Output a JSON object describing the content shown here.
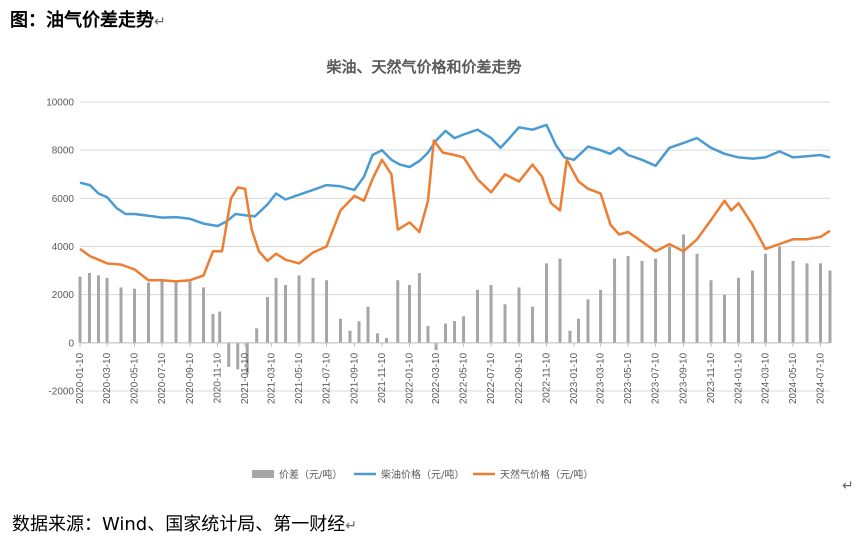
{
  "header": {
    "title": "图：油气价差走势",
    "mark": "↵"
  },
  "footer": {
    "source": "数据来源：Wind、国家统计局、第一财经",
    "mark": "↵",
    "stray": "↵"
  },
  "colors": {
    "diff": "#a6a6a6",
    "diesel": "#4a9bd1",
    "gas": "#ed7d31",
    "grid": "#d9d9d9"
  },
  "chart_data": {
    "type": "line",
    "title": "柴油、天然气价格和价差走势",
    "ylim": [
      -2000,
      10000
    ],
    "yticks": [
      -2000,
      0,
      2000,
      4000,
      6000,
      8000,
      10000
    ],
    "x_start": "2020-01-10",
    "x_end": "2024-07-31",
    "xticks": [
      "2020-01-10",
      "2020-03-10",
      "2020-05-10",
      "2020-07-10",
      "2020-09-10",
      "2020-11-10",
      "2021-01-10",
      "2021-03-10",
      "2021-05-10",
      "2021-07-10",
      "2021-09-10",
      "2021-11-10",
      "2022-01-10",
      "2022-03-10",
      "2022-05-10",
      "2022-07-10",
      "2022-09-10",
      "2022-11-10",
      "2023-01-10",
      "2023-03-10",
      "2023-05-10",
      "2023-07-10",
      "2023-09-10",
      "2023-11-10",
      "2024-01-10",
      "2024-03-10",
      "2024-05-10",
      "2024-07-10"
    ],
    "legend_position": "bottom",
    "series": [
      {
        "name": "价差（元/吨）",
        "kind": "bar",
        "points": [
          [
            "2020-01-10",
            2750
          ],
          [
            "2020-01-31",
            2900
          ],
          [
            "2020-02-20",
            2800
          ],
          [
            "2020-03-10",
            2700
          ],
          [
            "2020-04-10",
            2300
          ],
          [
            "2020-05-10",
            2250
          ],
          [
            "2020-06-10",
            2500
          ],
          [
            "2020-07-10",
            2600
          ],
          [
            "2020-08-10",
            2600
          ],
          [
            "2020-09-10",
            2550
          ],
          [
            "2020-10-10",
            2300
          ],
          [
            "2020-10-31",
            1200
          ],
          [
            "2020-11-15",
            1300
          ],
          [
            "2020-12-05",
            -1000
          ],
          [
            "2020-12-25",
            -1100
          ],
          [
            "2021-01-15",
            -1300
          ],
          [
            "2021-02-05",
            600
          ],
          [
            "2021-03-01",
            1900
          ],
          [
            "2021-03-20",
            2700
          ],
          [
            "2021-04-10",
            2400
          ],
          [
            "2021-05-10",
            2800
          ],
          [
            "2021-06-10",
            2700
          ],
          [
            "2021-07-10",
            2600
          ],
          [
            "2021-08-10",
            1000
          ],
          [
            "2021-08-31",
            500
          ],
          [
            "2021-09-20",
            900
          ],
          [
            "2021-10-10",
            1500
          ],
          [
            "2021-10-31",
            400
          ],
          [
            "2021-11-20",
            200
          ],
          [
            "2021-12-15",
            2600
          ],
          [
            "2022-01-10",
            2400
          ],
          [
            "2022-02-01",
            2900
          ],
          [
            "2022-02-20",
            700
          ],
          [
            "2022-03-10",
            -300
          ],
          [
            "2022-03-31",
            800
          ],
          [
            "2022-04-20",
            900
          ],
          [
            "2022-05-10",
            1100
          ],
          [
            "2022-06-10",
            2200
          ],
          [
            "2022-07-10",
            2400
          ],
          [
            "2022-08-10",
            1600
          ],
          [
            "2022-09-10",
            2300
          ],
          [
            "2022-10-10",
            1500
          ],
          [
            "2022-11-10",
            3300
          ],
          [
            "2022-12-10",
            3500
          ],
          [
            "2023-01-01",
            500
          ],
          [
            "2023-01-20",
            1000
          ],
          [
            "2023-02-10",
            1800
          ],
          [
            "2023-03-10",
            2200
          ],
          [
            "2023-04-10",
            3500
          ],
          [
            "2023-05-10",
            3600
          ],
          [
            "2023-06-10",
            3400
          ],
          [
            "2023-07-10",
            3500
          ],
          [
            "2023-08-10",
            4000
          ],
          [
            "2023-09-10",
            4500
          ],
          [
            "2023-10-10",
            3700
          ],
          [
            "2023-11-10",
            2600
          ],
          [
            "2023-12-10",
            2000
          ],
          [
            "2024-01-10",
            2700
          ],
          [
            "2024-02-10",
            3000
          ],
          [
            "2024-03-10",
            3700
          ],
          [
            "2024-04-10",
            4000
          ],
          [
            "2024-05-10",
            3400
          ],
          [
            "2024-06-10",
            3300
          ],
          [
            "2024-07-10",
            3300
          ],
          [
            "2024-07-31",
            3000
          ]
        ]
      },
      {
        "name": "柴油价格（元/吨）",
        "kind": "line",
        "points": [
          [
            "2020-01-10",
            6650
          ],
          [
            "2020-02-01",
            6550
          ],
          [
            "2020-02-20",
            6200
          ],
          [
            "2020-03-10",
            6050
          ],
          [
            "2020-03-31",
            5600
          ],
          [
            "2020-04-20",
            5350
          ],
          [
            "2020-05-10",
            5350
          ],
          [
            "2020-06-10",
            5280
          ],
          [
            "2020-07-10",
            5200
          ],
          [
            "2020-08-10",
            5220
          ],
          [
            "2020-09-10",
            5150
          ],
          [
            "2020-10-10",
            4950
          ],
          [
            "2020-11-10",
            4850
          ],
          [
            "2020-12-01",
            5050
          ],
          [
            "2020-12-20",
            5350
          ],
          [
            "2021-01-10",
            5300
          ],
          [
            "2021-02-01",
            5250
          ],
          [
            "2021-03-01",
            5750
          ],
          [
            "2021-03-20",
            6200
          ],
          [
            "2021-04-10",
            5950
          ],
          [
            "2021-05-10",
            6150
          ],
          [
            "2021-06-10",
            6350
          ],
          [
            "2021-07-10",
            6550
          ],
          [
            "2021-08-10",
            6500
          ],
          [
            "2021-09-10",
            6350
          ],
          [
            "2021-10-01",
            6900
          ],
          [
            "2021-10-20",
            7800
          ],
          [
            "2021-11-10",
            8000
          ],
          [
            "2021-12-01",
            7600
          ],
          [
            "2021-12-20",
            7400
          ],
          [
            "2022-01-10",
            7300
          ],
          [
            "2022-02-01",
            7550
          ],
          [
            "2022-02-20",
            7900
          ],
          [
            "2022-03-10",
            8400
          ],
          [
            "2022-03-31",
            8800
          ],
          [
            "2022-04-20",
            8500
          ],
          [
            "2022-05-10",
            8650
          ],
          [
            "2022-06-10",
            8850
          ],
          [
            "2022-07-10",
            8500
          ],
          [
            "2022-07-31",
            8100
          ],
          [
            "2022-08-20",
            8500
          ],
          [
            "2022-09-10",
            8950
          ],
          [
            "2022-10-10",
            8850
          ],
          [
            "2022-11-10",
            9050
          ],
          [
            "2022-12-01",
            8200
          ],
          [
            "2022-12-20",
            7700
          ],
          [
            "2023-01-10",
            7600
          ],
          [
            "2023-02-10",
            8150
          ],
          [
            "2023-03-10",
            8000
          ],
          [
            "2023-03-31",
            7850
          ],
          [
            "2023-04-20",
            8100
          ],
          [
            "2023-05-10",
            7800
          ],
          [
            "2023-06-10",
            7600
          ],
          [
            "2023-07-10",
            7350
          ],
          [
            "2023-08-10",
            8100
          ],
          [
            "2023-09-10",
            8300
          ],
          [
            "2023-10-10",
            8500
          ],
          [
            "2023-11-10",
            8100
          ],
          [
            "2023-12-10",
            7850
          ],
          [
            "2024-01-10",
            7700
          ],
          [
            "2024-02-10",
            7650
          ],
          [
            "2024-03-10",
            7700
          ],
          [
            "2024-04-10",
            7950
          ],
          [
            "2024-05-10",
            7700
          ],
          [
            "2024-06-10",
            7750
          ],
          [
            "2024-07-10",
            7800
          ],
          [
            "2024-07-31",
            7700
          ]
        ]
      },
      {
        "name": "天然气价格（元/吨）",
        "kind": "line",
        "points": [
          [
            "2020-01-10",
            3900
          ],
          [
            "2020-02-01",
            3600
          ],
          [
            "2020-02-20",
            3450
          ],
          [
            "2020-03-10",
            3300
          ],
          [
            "2020-04-10",
            3250
          ],
          [
            "2020-05-10",
            3050
          ],
          [
            "2020-06-10",
            2600
          ],
          [
            "2020-07-10",
            2600
          ],
          [
            "2020-08-10",
            2550
          ],
          [
            "2020-09-10",
            2600
          ],
          [
            "2020-10-10",
            2800
          ],
          [
            "2020-10-31",
            3800
          ],
          [
            "2020-11-20",
            3800
          ],
          [
            "2020-12-10",
            6000
          ],
          [
            "2020-12-25",
            6450
          ],
          [
            "2021-01-10",
            6400
          ],
          [
            "2021-01-25",
            4700
          ],
          [
            "2021-02-10",
            3800
          ],
          [
            "2021-03-01",
            3400
          ],
          [
            "2021-03-20",
            3700
          ],
          [
            "2021-04-10",
            3450
          ],
          [
            "2021-05-10",
            3300
          ],
          [
            "2021-06-10",
            3750
          ],
          [
            "2021-07-10",
            4000
          ],
          [
            "2021-08-10",
            5500
          ],
          [
            "2021-09-10",
            6100
          ],
          [
            "2021-10-01",
            5900
          ],
          [
            "2021-10-20",
            6800
          ],
          [
            "2021-11-10",
            7600
          ],
          [
            "2021-12-01",
            7000
          ],
          [
            "2021-12-15",
            4700
          ],
          [
            "2022-01-10",
            5000
          ],
          [
            "2022-02-01",
            4600
          ],
          [
            "2022-02-20",
            5900
          ],
          [
            "2022-03-05",
            8400
          ],
          [
            "2022-03-25",
            7900
          ],
          [
            "2022-04-20",
            7800
          ],
          [
            "2022-05-10",
            7700
          ],
          [
            "2022-06-10",
            6800
          ],
          [
            "2022-07-10",
            6250
          ],
          [
            "2022-08-10",
            7000
          ],
          [
            "2022-09-10",
            6700
          ],
          [
            "2022-10-10",
            7400
          ],
          [
            "2022-10-31",
            6900
          ],
          [
            "2022-11-20",
            5800
          ],
          [
            "2022-12-10",
            5500
          ],
          [
            "2022-12-25",
            7600
          ],
          [
            "2023-01-20",
            6700
          ],
          [
            "2023-02-10",
            6400
          ],
          [
            "2023-03-10",
            6200
          ],
          [
            "2023-04-01",
            4900
          ],
          [
            "2023-04-20",
            4500
          ],
          [
            "2023-05-10",
            4600
          ],
          [
            "2023-06-10",
            4200
          ],
          [
            "2023-07-10",
            3800
          ],
          [
            "2023-08-10",
            4100
          ],
          [
            "2023-09-10",
            3800
          ],
          [
            "2023-10-10",
            4300
          ],
          [
            "2023-11-10",
            5100
          ],
          [
            "2023-12-10",
            5900
          ],
          [
            "2023-12-25",
            5500
          ],
          [
            "2024-01-10",
            5800
          ],
          [
            "2024-02-10",
            4900
          ],
          [
            "2024-03-10",
            3900
          ],
          [
            "2024-04-10",
            4100
          ],
          [
            "2024-05-10",
            4300
          ],
          [
            "2024-06-10",
            4300
          ],
          [
            "2024-07-10",
            4400
          ],
          [
            "2024-07-31",
            4650
          ]
        ]
      }
    ]
  }
}
